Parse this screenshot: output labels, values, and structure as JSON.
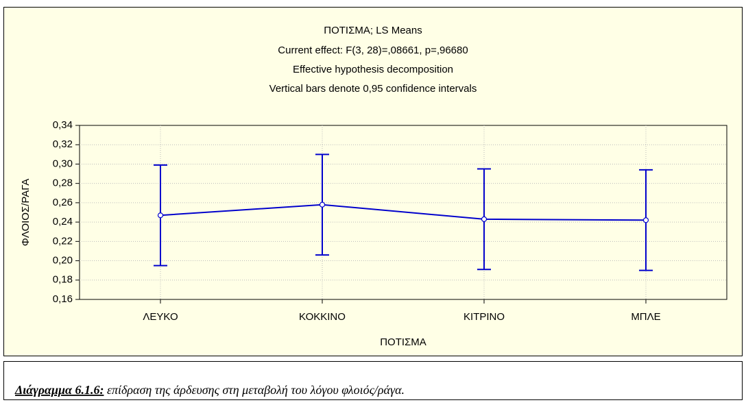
{
  "chart_data": {
    "type": "line_errorbar",
    "title": "ΠΟΤΙΣΜΑ; LS Means",
    "subtitle": [
      "Current effect: F(3, 28)=,08661, p=,96680",
      "Effective hypothesis decomposition",
      "Vertical bars denote 0,95 confidence intervals"
    ],
    "x_label": "ΠΟΤΙΣΜΑ",
    "y_label": "ΦΛΟΙΟΣ/ΡΑΓΑ",
    "categories": [
      "ΛΕΥΚΟ",
      "ΚΟΚΚΙΝΟ",
      "ΚΙΤΡΙΝΟ",
      "ΜΠΛΕ"
    ],
    "values": [
      0.247,
      0.258,
      0.243,
      0.242
    ],
    "errors": [
      0.052,
      0.052,
      0.052,
      0.052
    ],
    "color": "#0000cc",
    "ylim": [
      0.16,
      0.34
    ],
    "yticks": [
      {
        "value": 0.16,
        "label": "0,16"
      },
      {
        "value": 0.18,
        "label": "0,18"
      },
      {
        "value": 0.2,
        "label": "0,20"
      },
      {
        "value": 0.22,
        "label": "0,22"
      },
      {
        "value": 0.24,
        "label": "0,24"
      },
      {
        "value": 0.26,
        "label": "0,26"
      },
      {
        "value": 0.28,
        "label": "0,28"
      },
      {
        "value": 0.3,
        "label": "0,30"
      },
      {
        "value": 0.32,
        "label": "0,32"
      },
      {
        "value": 0.34,
        "label": "0,34"
      }
    ],
    "grid": true
  },
  "caption": {
    "label": "Διάγραμμα 6.1.6:",
    "text": " επίδραση της άρδευσης στη μεταβολή του λόγου φλοιός/ράγα."
  }
}
